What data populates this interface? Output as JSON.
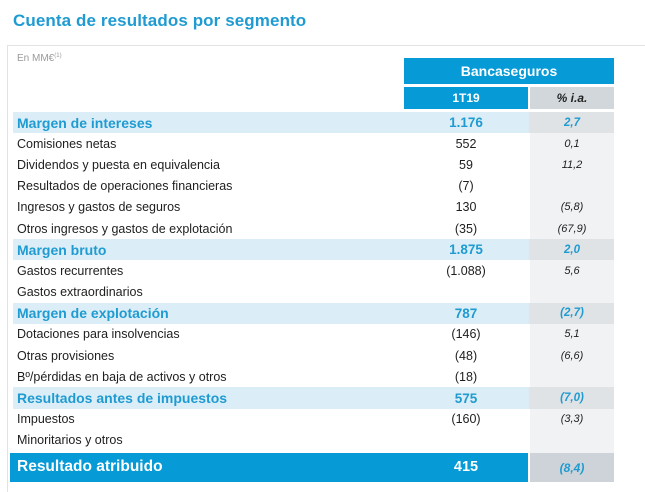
{
  "title": "Cuenta de resultados por segmento",
  "unit_label": "En MM€",
  "unit_footnote": "(1)",
  "header": {
    "group": "Bancaseguros",
    "period": "1T19",
    "change": "% i.a."
  },
  "rows": [
    {
      "label": "Margen de intereses",
      "value": "1.176",
      "pct": "2,7",
      "highlight": true
    },
    {
      "label": "Comisiones netas",
      "value": "552",
      "pct": "0,1",
      "highlight": false
    },
    {
      "label": "Dividendos y puesta en equivalencia",
      "value": "59",
      "pct": "11,2",
      "highlight": false
    },
    {
      "label": "Resultados de operaciones financieras",
      "value": "(7)",
      "pct": "",
      "highlight": false
    },
    {
      "label": "Ingresos y gastos de seguros",
      "value": "130",
      "pct": "(5,8)",
      "highlight": false
    },
    {
      "label": "Otros ingresos y gastos de explotación",
      "value": "(35)",
      "pct": "(67,9)",
      "highlight": false
    },
    {
      "label": "Margen bruto",
      "value": "1.875",
      "pct": "2,0",
      "highlight": true
    },
    {
      "label": "Gastos recurrentes",
      "value": "(1.088)",
      "pct": "5,6",
      "highlight": false
    },
    {
      "label": "Gastos extraordinarios",
      "value": "",
      "pct": "",
      "highlight": false
    },
    {
      "label": "Margen de explotación",
      "value": "787",
      "pct": "(2,7)",
      "highlight": true
    },
    {
      "label": "Dotaciones para insolvencias",
      "value": "(146)",
      "pct": "5,1",
      "highlight": false
    },
    {
      "label": "Otras provisiones",
      "value": "(48)",
      "pct": "(6,6)",
      "highlight": false
    },
    {
      "label": "Bº/pérdidas en baja de activos y otros",
      "value": "(18)",
      "pct": "",
      "highlight": false
    },
    {
      "label": "Resultados antes de impuestos",
      "value": "575",
      "pct": "(7,0)",
      "highlight": true
    },
    {
      "label": "Impuestos",
      "value": "(160)",
      "pct": "(3,3)",
      "highlight": false
    },
    {
      "label": "Minoritarios y otros",
      "value": "",
      "pct": "",
      "highlight": false
    }
  ],
  "total": {
    "label": "Resultado atribuido",
    "value": "415",
    "pct": "(8,4)"
  },
  "colors": {
    "brand_blue": "#069ad6",
    "accent_text": "#1f9bd1",
    "highlight_row": "#dbeef7",
    "pct_column": "#f1f2f4"
  }
}
